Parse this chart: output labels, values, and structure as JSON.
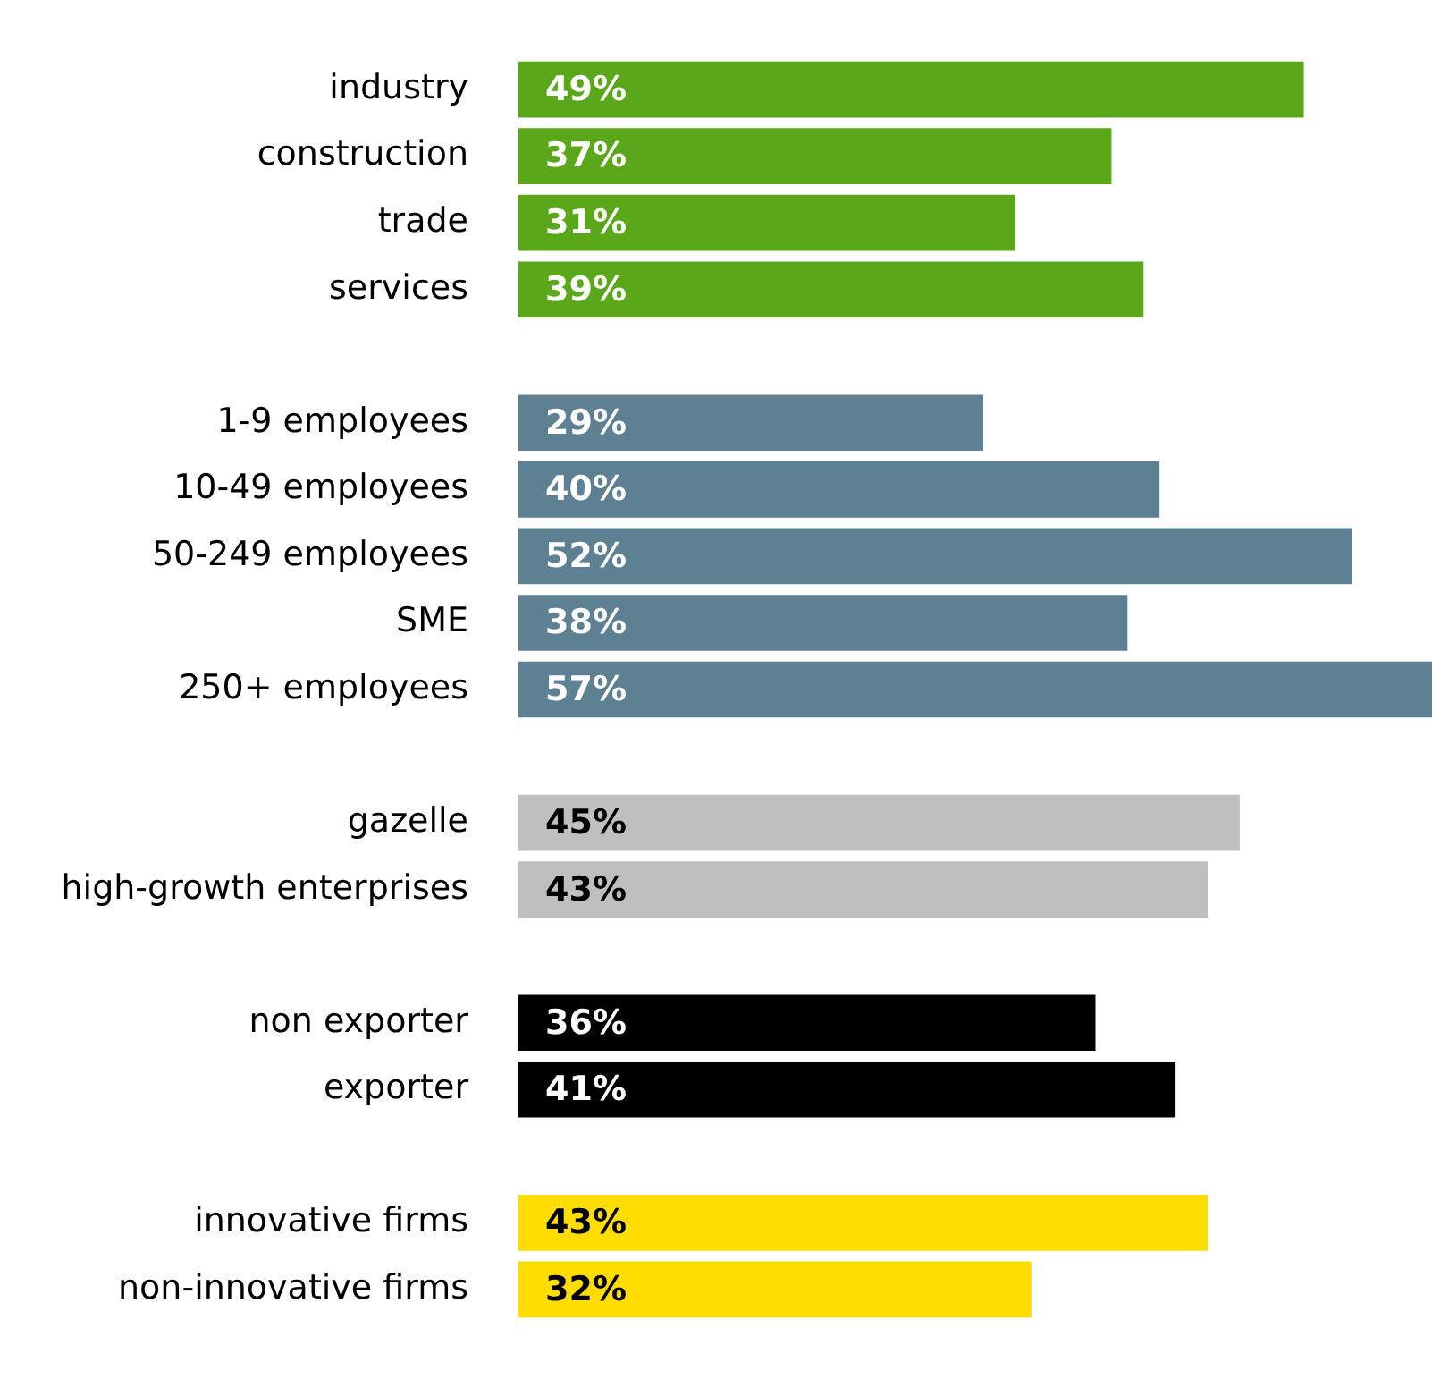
{
  "chart_data": {
    "type": "bar",
    "orientation": "horizontal",
    "legend": false,
    "grid": false,
    "tick_labels": "y",
    "categories": [
      "industry",
      "construction",
      "trade",
      "services",
      null,
      "1-9 employees",
      "10-49 employees",
      "50-249 employees",
      "SME",
      "250+ employees",
      null,
      "gazelle",
      "high-growth enterprises",
      null,
      "non exporter",
      "exporter",
      null,
      "innovative firms",
      "non-innovative firms"
    ],
    "values": [
      49,
      37,
      31,
      39,
      null,
      29,
      40,
      52,
      38,
      57,
      null,
      45,
      43,
      null,
      36,
      41,
      null,
      43,
      32
    ],
    "value_labels": [
      "49%",
      "37%",
      "31%",
      "39%",
      null,
      "29%",
      "40%",
      "52%",
      "38%",
      "57%",
      null,
      "45%",
      "43%",
      null,
      "36%",
      "41%",
      null,
      "43%",
      "32%"
    ],
    "colors": [
      "#5aa81a",
      "#5aa81a",
      "#5aa81a",
      "#5aa81a",
      null,
      "#5e8093",
      "#5e8093",
      "#5e8093",
      "#5e8093",
      "#5e8093",
      null,
      "#bfbfbf",
      "#bfbfbf",
      null,
      "#000000",
      "#000000",
      null,
      "#ffdd00",
      "#ffdd00"
    ]
  }
}
